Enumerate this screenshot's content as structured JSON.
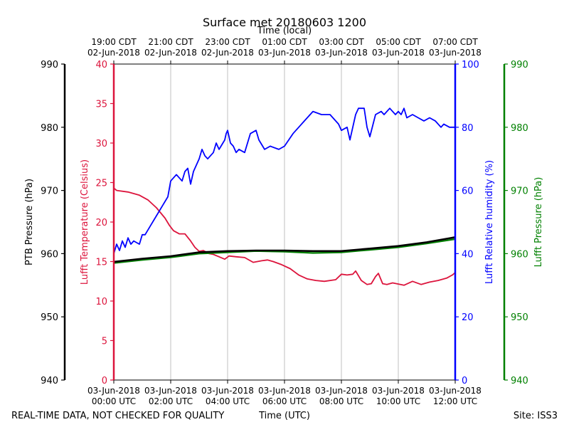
{
  "chart_data": {
    "type": "line",
    "title": "Surface met 20180603 1200",
    "top_axis_label": "Time (local)",
    "xlabel": "Time (UTC)",
    "footer_left": "REAL-TIME DATA, NOT CHECKED FOR QUALITY",
    "footer_right": "Site: ISS3",
    "x_range_hours_utc": [
      0,
      12
    ],
    "x_ticks_bottom": [
      {
        "hour": 0,
        "line1": "03-Jun-2018",
        "line2": "00:00 UTC"
      },
      {
        "hour": 2,
        "line1": "03-Jun-2018",
        "line2": "02:00 UTC"
      },
      {
        "hour": 4,
        "line1": "03-Jun-2018",
        "line2": "04:00 UTC"
      },
      {
        "hour": 6,
        "line1": "03-Jun-2018",
        "line2": "06:00 UTC"
      },
      {
        "hour": 8,
        "line1": "03-Jun-2018",
        "line2": "08:00 UTC"
      },
      {
        "hour": 10,
        "line1": "03-Jun-2018",
        "line2": "10:00 UTC"
      },
      {
        "hour": 12,
        "line1": "03-Jun-2018",
        "line2": "12:00 UTC"
      }
    ],
    "x_ticks_top": [
      {
        "hour": 0,
        "line1": "19:00 CDT",
        "line2": "02-Jun-2018"
      },
      {
        "hour": 2,
        "line1": "21:00 CDT",
        "line2": "02-Jun-2018"
      },
      {
        "hour": 4,
        "line1": "23:00 CDT",
        "line2": "02-Jun-2018"
      },
      {
        "hour": 6,
        "line1": "01:00 CDT",
        "line2": "03-Jun-2018"
      },
      {
        "hour": 8,
        "line1": "03:00 CDT",
        "line2": "03-Jun-2018"
      },
      {
        "hour": 10,
        "line1": "05:00 CDT",
        "line2": "03-Jun-2018"
      },
      {
        "hour": 12,
        "line1": "07:00 CDT",
        "line2": "03-Jun-2018"
      }
    ],
    "axes": {
      "ptb_pressure": {
        "label": "PTB Pressure (hPa)",
        "range": [
          940,
          990
        ],
        "ticks": [
          940,
          950,
          960,
          970,
          980,
          990
        ],
        "color": "#000000"
      },
      "temperature": {
        "label": "Lufft Temperature (Celsius)",
        "range": [
          0,
          40
        ],
        "ticks": [
          0,
          5,
          10,
          15,
          20,
          25,
          30,
          35,
          40
        ],
        "color": "#dc143c"
      },
      "humidity": {
        "label": "Lufft Relative humidity (%)",
        "range": [
          0,
          100
        ],
        "ticks": [
          0,
          20,
          40,
          60,
          80,
          100
        ],
        "color": "#0000ff"
      },
      "lufft_pressure": {
        "label": "Lufft Pressure (hPa)",
        "range": [
          940,
          990
        ],
        "ticks": [
          940,
          950,
          960,
          970,
          980,
          990
        ],
        "color": "#008000"
      }
    },
    "series": [
      {
        "name": "Lufft Temperature",
        "axis": "temperature",
        "color": "#dc143c",
        "x": [
          0,
          0.1,
          0.5,
          0.9,
          1.2,
          1.5,
          1.8,
          1.95,
          2.1,
          2.3,
          2.5,
          2.7,
          2.85,
          3.0,
          3.15,
          3.35,
          3.5,
          3.7,
          3.9,
          4.05,
          4.3,
          4.6,
          4.9,
          5.2,
          5.4,
          5.6,
          5.9,
          6.2,
          6.5,
          6.8,
          7.1,
          7.4,
          7.8,
          8.0,
          8.2,
          8.4,
          8.5,
          8.7,
          8.9,
          9.05,
          9.2,
          9.3,
          9.45,
          9.6,
          9.8,
          10.2,
          10.5,
          10.8,
          11.1,
          11.4,
          11.7,
          11.9,
          12.0
        ],
        "values": [
          24.3,
          24.0,
          23.8,
          23.4,
          22.8,
          21.8,
          20.5,
          19.6,
          18.9,
          18.5,
          18.5,
          17.6,
          16.8,
          16.3,
          16.4,
          16.0,
          15.9,
          15.6,
          15.3,
          15.7,
          15.6,
          15.5,
          14.9,
          15.1,
          15.2,
          15.0,
          14.6,
          14.1,
          13.3,
          12.8,
          12.6,
          12.5,
          12.7,
          13.4,
          13.3,
          13.4,
          13.8,
          12.6,
          12.1,
          12.2,
          13.1,
          13.5,
          12.2,
          12.1,
          12.3,
          12.0,
          12.5,
          12.1,
          12.4,
          12.6,
          12.9,
          13.3,
          13.6
        ]
      },
      {
        "name": "Lufft Relative humidity",
        "axis": "humidity",
        "color": "#0000ff",
        "x": [
          0,
          0.1,
          0.2,
          0.3,
          0.4,
          0.5,
          0.6,
          0.7,
          0.9,
          1.0,
          1.1,
          1.3,
          1.5,
          1.7,
          1.9,
          2.0,
          2.1,
          2.2,
          2.3,
          2.4,
          2.5,
          2.6,
          2.7,
          2.8,
          3.0,
          3.1,
          3.2,
          3.3,
          3.5,
          3.6,
          3.7,
          3.9,
          3.95,
          4.0,
          4.05,
          4.1,
          4.2,
          4.3,
          4.4,
          4.6,
          4.7,
          4.8,
          5.0,
          5.1,
          5.3,
          5.5,
          5.8,
          6.0,
          6.3,
          6.5,
          6.7,
          7.0,
          7.3,
          7.6,
          7.9,
          8.0,
          8.2,
          8.3,
          8.5,
          8.6,
          8.8,
          8.9,
          9.0,
          9.2,
          9.4,
          9.5,
          9.7,
          9.9,
          10.0,
          10.1,
          10.2,
          10.3,
          10.5,
          10.7,
          10.9,
          11.1,
          11.3,
          11.5,
          11.6,
          11.8,
          11.9,
          12.0
        ],
        "values": [
          40,
          43,
          41,
          44,
          42,
          45,
          43,
          44,
          43,
          46,
          46,
          49,
          52,
          55,
          58,
          63,
          64,
          65,
          64,
          63,
          66,
          67,
          62,
          66,
          70,
          73,
          71,
          70,
          72,
          75,
          73,
          76,
          78,
          79,
          77,
          75,
          74,
          72,
          73,
          72,
          75,
          78,
          79,
          76,
          73,
          74,
          73,
          74,
          78,
          80,
          82,
          85,
          84,
          84,
          81,
          79,
          80,
          76,
          84,
          86,
          86,
          80,
          77,
          84,
          85,
          84,
          86,
          84,
          85,
          84,
          86,
          83,
          84,
          83,
          82,
          83,
          82,
          80,
          81,
          80,
          80,
          80
        ]
      },
      {
        "name": "Lufft Pressure",
        "axis": "lufft_pressure",
        "color": "#008000",
        "x": [
          0,
          1,
          2,
          3,
          4,
          5,
          6,
          7,
          8,
          9,
          10,
          11,
          12
        ],
        "values": [
          958.5,
          959.0,
          959.4,
          960.0,
          960.2,
          960.4,
          960.3,
          960.1,
          960.2,
          960.6,
          961.0,
          961.6,
          962.3
        ]
      },
      {
        "name": "PTB Pressure",
        "axis": "ptb_pressure",
        "color": "#000000",
        "x": [
          0,
          1,
          2,
          3,
          4,
          5,
          6,
          7,
          8,
          9,
          10,
          11,
          12
        ],
        "values": [
          958.7,
          959.2,
          959.6,
          960.2,
          960.4,
          960.5,
          960.5,
          960.4,
          960.4,
          960.8,
          961.2,
          961.8,
          962.6
        ]
      }
    ]
  }
}
